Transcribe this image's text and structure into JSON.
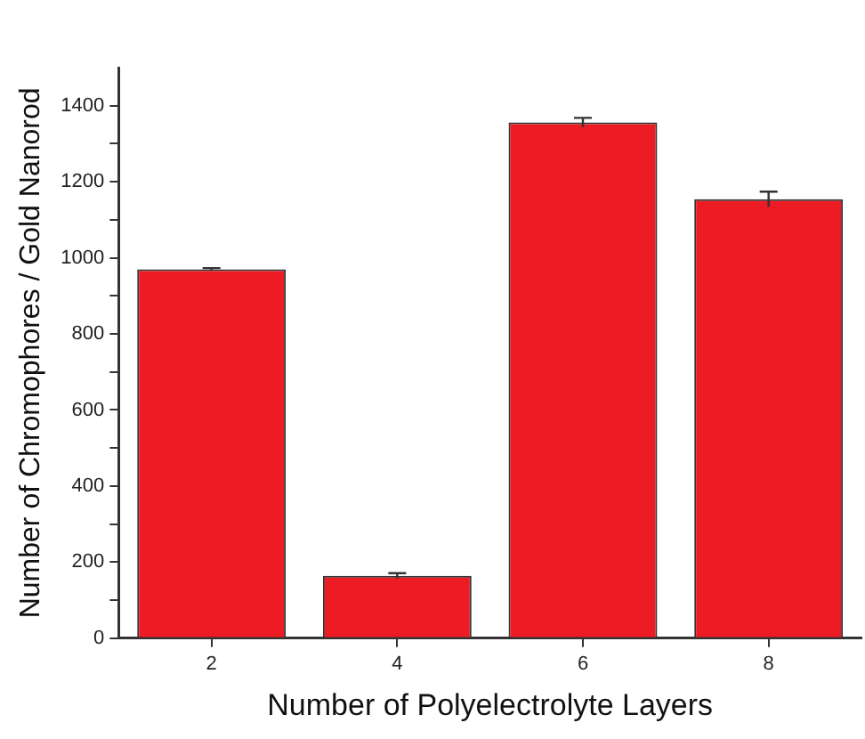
{
  "chart_data": {
    "type": "bar",
    "xlabel": "Number of Polyelectrolyte Layers",
    "ylabel": "Number of Chromophores / Gold Nanorod",
    "categories": [
      "2",
      "4",
      "6",
      "8"
    ],
    "values": [
      970,
      164,
      1356,
      1154
    ],
    "errors": [
      3,
      7,
      12,
      20
    ],
    "color": "#ed1c24",
    "ylim": [
      0,
      1500
    ],
    "yticks": [
      0,
      {
        "value": 100,
        "label": null
      },
      200,
      {
        "value": 300,
        "label": null
      },
      400,
      {
        "value": 500,
        "label": null
      },
      600,
      {
        "value": 700,
        "label": null
      },
      800,
      {
        "value": 900,
        "label": null
      },
      1000,
      {
        "value": 1100,
        "label": null
      },
      1200,
      {
        "value": 1300,
        "label": null
      },
      1400
    ],
    "grid": false,
    "legend": false
  }
}
